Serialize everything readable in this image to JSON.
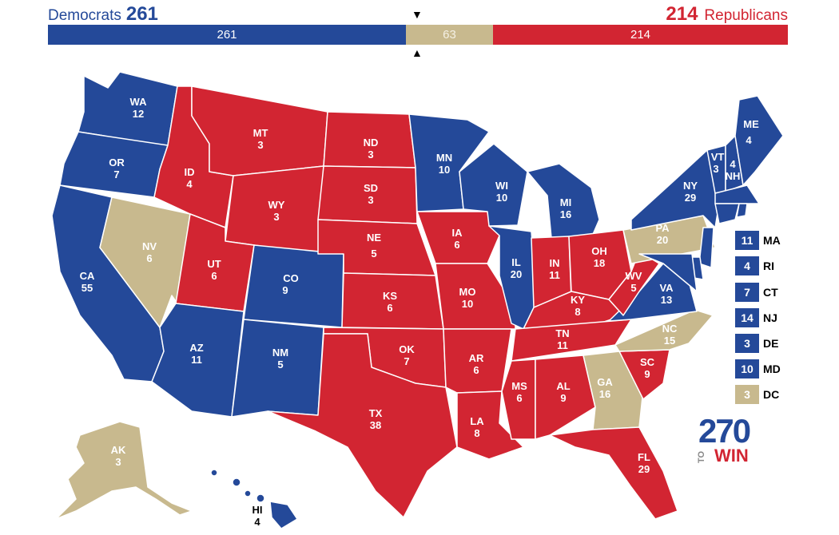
{
  "header": {
    "dem_label": "Democrats",
    "dem_total": "261",
    "rep_total": "214",
    "rep_label": "Republicans"
  },
  "bar": {
    "dem": "261",
    "tossup": "63",
    "rep": "214"
  },
  "colors": {
    "dem": "#244999",
    "rep": "#d22532",
    "tossup": "#c8b98e"
  },
  "states": {
    "WA": {
      "abbr": "WA",
      "ev": "12"
    },
    "OR": {
      "abbr": "OR",
      "ev": "7"
    },
    "CA": {
      "abbr": "CA",
      "ev": "55"
    },
    "NV": {
      "abbr": "NV",
      "ev": "6"
    },
    "ID": {
      "abbr": "ID",
      "ev": "4"
    },
    "MT": {
      "abbr": "MT",
      "ev": "3"
    },
    "WY": {
      "abbr": "WY",
      "ev": "3"
    },
    "UT": {
      "abbr": "UT",
      "ev": "6"
    },
    "AZ": {
      "abbr": "AZ",
      "ev": "11"
    },
    "CO": {
      "abbr": "CO",
      "ev": "9"
    },
    "NM": {
      "abbr": "NM",
      "ev": "5"
    },
    "ND": {
      "abbr": "ND",
      "ev": "3"
    },
    "SD": {
      "abbr": "SD",
      "ev": "3"
    },
    "NE": {
      "abbr": "NE",
      "ev": "5"
    },
    "KS": {
      "abbr": "KS",
      "ev": "6"
    },
    "OK": {
      "abbr": "OK",
      "ev": "7"
    },
    "TX": {
      "abbr": "TX",
      "ev": "38"
    },
    "MN": {
      "abbr": "MN",
      "ev": "10"
    },
    "IA": {
      "abbr": "IA",
      "ev": "6"
    },
    "MO": {
      "abbr": "MO",
      "ev": "10"
    },
    "AR": {
      "abbr": "AR",
      "ev": "6"
    },
    "LA": {
      "abbr": "LA",
      "ev": "8"
    },
    "WI": {
      "abbr": "WI",
      "ev": "10"
    },
    "IL": {
      "abbr": "IL",
      "ev": "20"
    },
    "MI": {
      "abbr": "MI",
      "ev": "16"
    },
    "IN": {
      "abbr": "IN",
      "ev": "11"
    },
    "OH": {
      "abbr": "OH",
      "ev": "18"
    },
    "KY": {
      "abbr": "KY",
      "ev": "8"
    },
    "TN": {
      "abbr": "TN",
      "ev": "11"
    },
    "MS": {
      "abbr": "MS",
      "ev": "6"
    },
    "AL": {
      "abbr": "AL",
      "ev": "9"
    },
    "GA": {
      "abbr": "GA",
      "ev": "16"
    },
    "FL": {
      "abbr": "FL",
      "ev": "29"
    },
    "SC": {
      "abbr": "SC",
      "ev": "9"
    },
    "NC": {
      "abbr": "NC",
      "ev": "15"
    },
    "VA": {
      "abbr": "VA",
      "ev": "13"
    },
    "WV": {
      "abbr": "WV",
      "ev": "5"
    },
    "PA": {
      "abbr": "PA",
      "ev": "20"
    },
    "NY": {
      "abbr": "NY",
      "ev": "29"
    },
    "VT": {
      "abbr": "VT",
      "ev": "3"
    },
    "NH": {
      "abbr": "NH",
      "ev": "4"
    },
    "ME": {
      "abbr": "ME",
      "ev": "4"
    },
    "AK": {
      "abbr": "AK",
      "ev": "3"
    },
    "HI": {
      "abbr": "HI",
      "ev": "4"
    }
  },
  "small_states": [
    {
      "abbr": "MA",
      "ev": "11",
      "party": "dem"
    },
    {
      "abbr": "RI",
      "ev": "4",
      "party": "dem"
    },
    {
      "abbr": "CT",
      "ev": "7",
      "party": "dem"
    },
    {
      "abbr": "NJ",
      "ev": "14",
      "party": "dem"
    },
    {
      "abbr": "DE",
      "ev": "3",
      "party": "dem"
    },
    {
      "abbr": "MD",
      "ev": "10",
      "party": "dem"
    },
    {
      "abbr": "DC",
      "ev": "3",
      "party": "tossup"
    }
  ],
  "logo": {
    "number": "270",
    "to": "TO",
    "win": "WIN"
  }
}
